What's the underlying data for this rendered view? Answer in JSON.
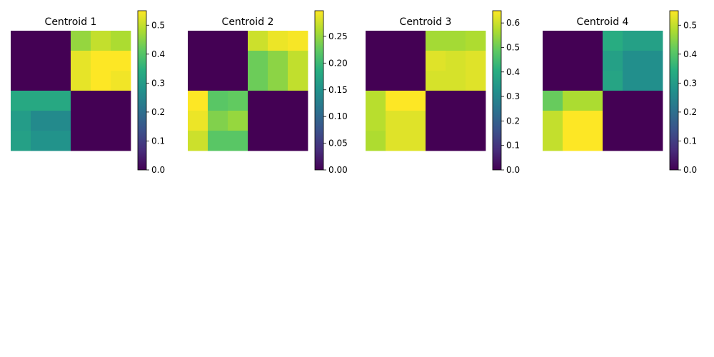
{
  "chart_data": [
    {
      "type": "heatmap",
      "title": "Centroid 1",
      "colormap": "viridis",
      "colorbar": {
        "vmin": 0.0,
        "vmax": 0.55,
        "ticks": [
          "0.0",
          "0.1",
          "0.2",
          "0.3",
          "0.4",
          "0.5"
        ]
      },
      "matrix": [
        [
          0.0,
          0.0,
          0.0,
          0.46,
          0.5,
          0.48
        ],
        [
          0.0,
          0.0,
          0.0,
          0.53,
          0.55,
          0.55
        ],
        [
          0.0,
          0.0,
          0.0,
          0.53,
          0.55,
          0.54
        ],
        [
          0.33,
          0.33,
          0.33,
          0.0,
          0.0,
          0.0
        ],
        [
          0.3,
          0.26,
          0.26,
          0.0,
          0.0,
          0.0
        ],
        [
          0.31,
          0.28,
          0.28,
          0.0,
          0.0,
          0.0
        ]
      ]
    },
    {
      "type": "heatmap",
      "title": "Centroid 2",
      "colormap": "viridis",
      "colorbar": {
        "vmin": 0.0,
        "vmax": 0.298,
        "ticks": [
          "0.00",
          "0.05",
          "0.10",
          "0.15",
          "0.20",
          "0.25"
        ]
      },
      "matrix": [
        [
          0.0,
          0.0,
          0.0,
          0.275,
          0.29,
          0.295
        ],
        [
          0.0,
          0.0,
          0.0,
          0.23,
          0.245,
          0.27
        ],
        [
          0.0,
          0.0,
          0.0,
          0.23,
          0.245,
          0.27
        ],
        [
          0.298,
          0.22,
          0.225,
          0.0,
          0.0,
          0.0
        ],
        [
          0.29,
          0.24,
          0.25,
          0.0,
          0.0,
          0.0
        ],
        [
          0.275,
          0.22,
          0.22,
          0.0,
          0.0,
          0.0
        ]
      ]
    },
    {
      "type": "heatmap",
      "title": "Centroid 3",
      "colormap": "viridis",
      "colorbar": {
        "vmin": 0.0,
        "vmax": 0.65,
        "ticks": [
          "0.0",
          "0.1",
          "0.2",
          "0.3",
          "0.4",
          "0.5",
          "0.6"
        ]
      },
      "matrix": [
        [
          0.0,
          0.0,
          0.0,
          0.56,
          0.56,
          0.57
        ],
        [
          0.0,
          0.0,
          0.0,
          0.62,
          0.61,
          0.62
        ],
        [
          0.0,
          0.0,
          0.0,
          0.61,
          0.61,
          0.62
        ],
        [
          0.58,
          0.65,
          0.65,
          0.0,
          0.0,
          0.0
        ],
        [
          0.58,
          0.62,
          0.62,
          0.0,
          0.0,
          0.0
        ],
        [
          0.57,
          0.62,
          0.62,
          0.0,
          0.0,
          0.0
        ]
      ]
    },
    {
      "type": "heatmap",
      "title": "Centroid 4",
      "colormap": "viridis",
      "colorbar": {
        "vmin": 0.0,
        "vmax": 0.55,
        "ticks": [
          "0.0",
          "0.1",
          "0.2",
          "0.3",
          "0.4",
          "0.5"
        ]
      },
      "matrix": [
        [
          0.0,
          0.0,
          0.0,
          0.34,
          0.31,
          0.31
        ],
        [
          0.0,
          0.0,
          0.0,
          0.31,
          0.27,
          0.27
        ],
        [
          0.0,
          0.0,
          0.0,
          0.32,
          0.27,
          0.27
        ],
        [
          0.42,
          0.48,
          0.48,
          0.0,
          0.0,
          0.0
        ],
        [
          0.5,
          0.55,
          0.55,
          0.0,
          0.0,
          0.0
        ],
        [
          0.5,
          0.55,
          0.55,
          0.0,
          0.0,
          0.0
        ]
      ]
    }
  ]
}
